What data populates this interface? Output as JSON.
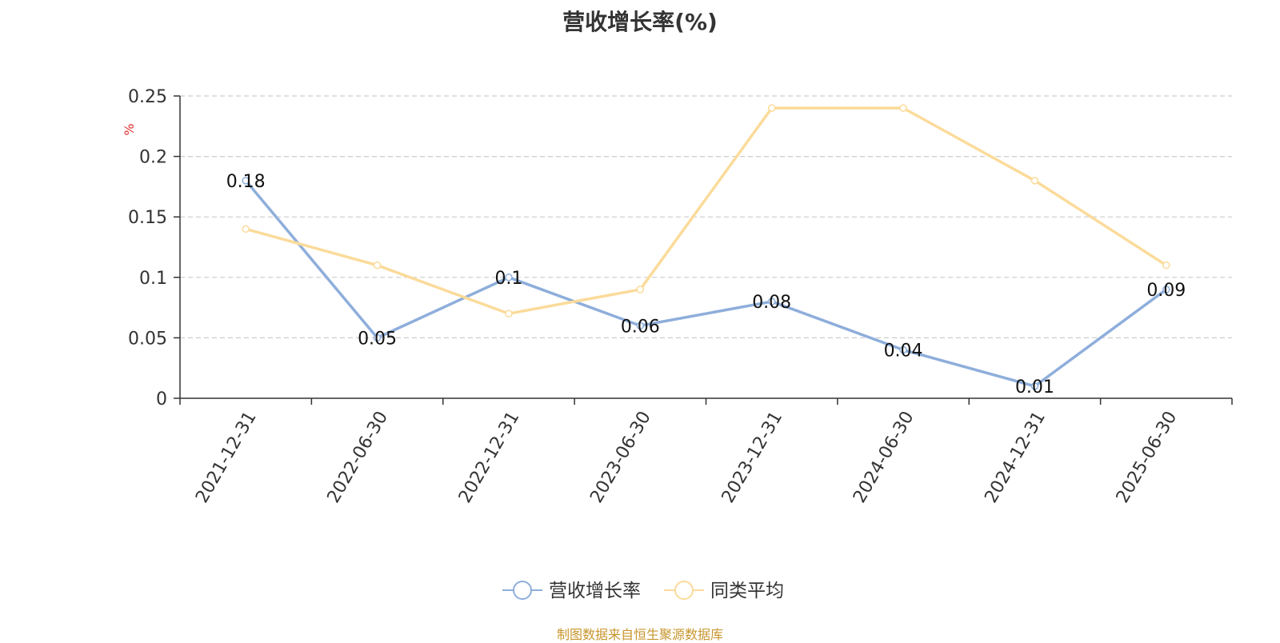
{
  "chart_data": {
    "type": "line",
    "title": "营收增长率(%)",
    "ylabel": "%",
    "categories": [
      "2021-12-31",
      "2022-06-30",
      "2022-12-31",
      "2023-06-30",
      "2023-12-31",
      "2024-06-30",
      "2024-12-31",
      "2025-06-30"
    ],
    "ylim": [
      0,
      0.25
    ],
    "yticks": [
      "0",
      "0.05",
      "0.1",
      "0.15",
      "0.2",
      "0.25"
    ],
    "grid": true,
    "legend_position": "bottom",
    "series": [
      {
        "name": "营收增长率",
        "color": "#8eaedb",
        "show_labels": true,
        "values": [
          0.18,
          0.05,
          0.1,
          0.06,
          0.08,
          0.04,
          0.01,
          0.09
        ],
        "labels": [
          "0.18",
          "0.05",
          "0.1",
          "0.06",
          "0.08",
          "0.04",
          "0.01",
          "0.09"
        ]
      },
      {
        "name": "同类平均",
        "color": "#fbdb9a",
        "show_labels": false,
        "values": [
          0.14,
          0.11,
          0.07,
          0.09,
          0.24,
          0.24,
          0.18,
          0.11
        ]
      }
    ]
  },
  "source_note": "制图数据来自恒生聚源数据库",
  "colors": {
    "axis": "#333333",
    "grid": "#cccccc",
    "ylabel": "#e03030",
    "source": "#c8962e"
  }
}
